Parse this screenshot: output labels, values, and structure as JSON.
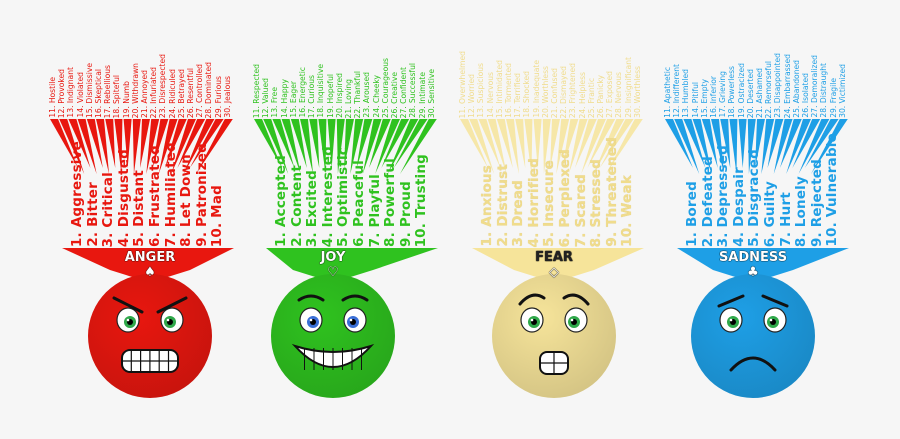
{
  "emotions": [
    {
      "name": "ANGER",
      "color": "#e8170f",
      "suit_icon": "spade-icon",
      "suit_glyph": "♠",
      "primary": [
        "1. Aggressive",
        "2. Bitter",
        "3. Critical",
        "4. Disgusted",
        "5. Distant",
        "6. Frustrated",
        "7. Humiliated",
        "8. Let Down",
        "9. Patronized",
        "10. Mad"
      ],
      "secondary": [
        "11. Hostile",
        "12. Provoked",
        "13. Indignant",
        "14. Violated",
        "15. Dismissive",
        "16. Skeptical",
        "17. Rebellious",
        "18. Spiteful",
        "19. Numb",
        "20. Withdrawn",
        "21. Annoyed",
        "22. Infuriated",
        "23. Disrespected",
        "24. Ridiculed",
        "25. Betrayed",
        "26. Resentful",
        "27. Controlled",
        "28. Dominated",
        "29. Furious",
        "30. Jealous"
      ]
    },
    {
      "name": "JOY",
      "color": "#2fc21f",
      "suit_icon": "heart-icon",
      "suit_glyph": "♡",
      "primary": [
        "1. Accepted",
        "2. Content",
        "3. Excited",
        "4. Interested",
        "5. Optimistic",
        "6. Peaceful",
        "7. Playful",
        "8. Powerful",
        "9. Proud",
        "10. Trusting"
      ],
      "secondary": [
        "11. Respected",
        "12. Valued",
        "13. Free",
        "14. Happy",
        "15. Eager",
        "16. Energetic",
        "17. Curious",
        "18. Inquisitive",
        "19. Hopeful",
        "20. Inspired",
        "21. Loving",
        "22. Thankful",
        "23. Aroused",
        "24. Cheeky",
        "25. Courageous",
        "26. Creative",
        "27. Confident",
        "28. Successful",
        "29. Intimate",
        "30. Sensitive"
      ]
    },
    {
      "name": "FEAR",
      "color": "#f6e49a",
      "suit_icon": "diamond-icon",
      "suit_glyph": "◇",
      "primary": [
        "1. Anxious",
        "2. Distrust",
        "3. Dread",
        "4. Horrified",
        "5. Insecure",
        "6. Perplexed",
        "7. Scared",
        "8. Stressed",
        "9. Threatened",
        "10. Weak"
      ],
      "secondary": [
        "11. Overwhelmed",
        "12. Worried",
        "13. Suspicious",
        "14. Nervous",
        "15. Intimidated",
        "16. Tormented",
        "17. Terrified",
        "18. Shocked",
        "19. Inadequate",
        "20. Worthless",
        "21. Confused",
        "22. Dismayed",
        "23. Frightened",
        "24. Helpless",
        "25. Frantic",
        "26. Panicky",
        "27. Exposed",
        "28. Nervous",
        "29. Insignificant",
        "30. Worthless"
      ]
    },
    {
      "name": "SADNESS",
      "color": "#1e9fe6",
      "suit_icon": "club-icon",
      "suit_glyph": "♣",
      "primary": [
        "1. Bored",
        "2. Defeated",
        "3. Depressed",
        "4. Despair",
        "5. Disgraced",
        "6. Guilty",
        "7. Hurt",
        "8. Lonely",
        "9. Rejected",
        "10. Vulnerable"
      ],
      "secondary": [
        "11. Apathetic",
        "12. Indifferent",
        "13. Humbled",
        "14. Pitiful",
        "15. Empty",
        "16. Inferior",
        "17. Grieving",
        "18. Powerless",
        "19. Ostracized",
        "20. Deserted",
        "21. Ashamed",
        "22. Remorseful",
        "23. Disappointed",
        "24. Embarrassed",
        "25. Abandoned",
        "26. Isolated",
        "27. Demoralized",
        "28. Distraught",
        "29. Fragile",
        "30. Victimized"
      ]
    }
  ]
}
